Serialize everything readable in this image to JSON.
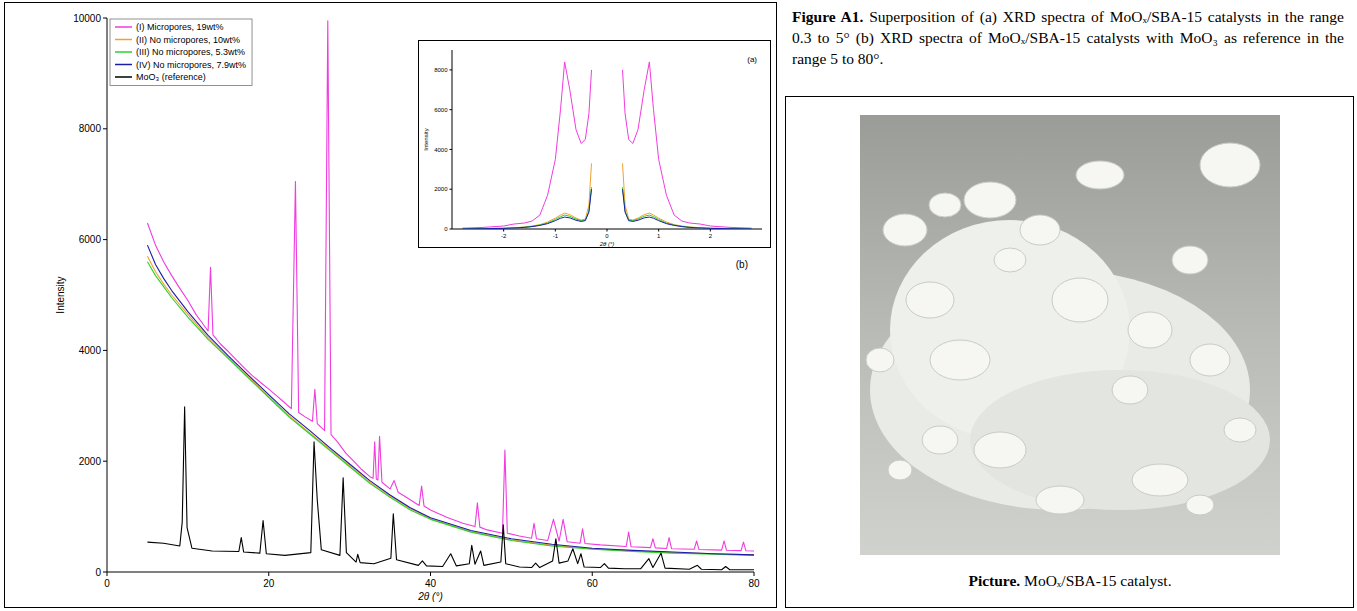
{
  "figure_caption": {
    "label": "Figure A1.",
    "text": "Superposition of (a) XRD spectra of MoOₓ/SBA-15 catalysts in the range 0.3 to 5° (b) XRD spectra of MoOₓ/SBA-15 catalysts with MoO₃ as reference in the range 5 to 80°."
  },
  "picture_caption": {
    "label": "Picture.",
    "text": "MoOₓ/SBA-15 catalyst."
  },
  "chart_data": [
    {
      "type": "line",
      "annotation": "(b)",
      "x_label": "2θ (°)",
      "y_label": "Intensity",
      "xlim": [
        0,
        80
      ],
      "xticks": [
        0,
        20,
        40,
        60,
        80
      ],
      "ylim": [
        0,
        10000
      ],
      "yticks": [
        0,
        2000,
        4000,
        6000,
        8000,
        10000
      ],
      "legend": "top-left",
      "series": [
        {
          "name": "(I) Micropores, 19wt%",
          "color": "#f03ce0",
          "x": [
            5,
            6,
            7,
            8,
            9,
            10,
            11,
            12,
            12.5,
            12.8,
            13.1,
            14,
            15,
            16,
            17,
            18,
            19,
            20,
            21,
            22,
            22.8,
            23.3,
            23.7,
            24.5,
            25.4,
            25.7,
            26,
            26.9,
            27.3,
            27.7,
            28.5,
            29.5,
            30.5,
            31.5,
            32.5,
            32.9,
            33.1,
            33.3,
            33.5,
            33.7,
            34,
            35,
            35.5,
            36,
            37,
            38.6,
            38.9,
            39.2,
            40,
            42,
            44,
            45.5,
            45.8,
            46.1,
            47,
            48.9,
            49.2,
            49.5,
            51,
            52.5,
            52.8,
            53.1,
            54.5,
            55.2,
            55.9,
            56.4,
            56.9,
            58.5,
            58.8,
            59.1,
            61,
            64.2,
            64.5,
            64.8,
            67.2,
            67.5,
            67.8,
            69.2,
            69.5,
            69.8,
            72.6,
            72.9,
            73.2,
            76,
            76.3,
            76.6,
            78.4,
            78.7,
            79,
            80
          ],
          "values": [
            6300,
            5900,
            5600,
            5350,
            5120,
            4900,
            4650,
            4450,
            4350,
            5500,
            4280,
            4120,
            3980,
            3830,
            3680,
            3540,
            3420,
            3300,
            3180,
            3050,
            2950,
            7050,
            2880,
            2800,
            2720,
            3300,
            2680,
            2550,
            9950,
            2480,
            2350,
            2150,
            2000,
            1850,
            1720,
            1690,
            2350,
            1680,
            1660,
            2450,
            1620,
            1500,
            1650,
            1440,
            1350,
            1200,
            1550,
            1190,
            1120,
            990,
            880,
            820,
            1250,
            810,
            760,
            700,
            2200,
            700,
            650,
            610,
            880,
            600,
            570,
            950,
            555,
            950,
            545,
            520,
            780,
            515,
            490,
            460,
            720,
            455,
            440,
            600,
            435,
            425,
            620,
            420,
            410,
            560,
            405,
            395,
            560,
            392,
            385,
            540,
            383,
            380
          ]
        },
        {
          "name": "(II) No micropores, 10wt%",
          "color": "#f0a22e",
          "x": [
            5,
            6,
            7,
            8,
            10,
            12.5,
            15,
            17.5,
            20,
            22.5,
            25,
            27.5,
            30,
            32.5,
            35,
            37.5,
            40,
            45,
            50,
            55,
            60,
            65,
            70,
            75,
            80
          ],
          "values": [
            5700,
            5420,
            5200,
            5000,
            4650,
            4230,
            3870,
            3520,
            3170,
            2820,
            2520,
            2220,
            1920,
            1620,
            1370,
            1140,
            960,
            730,
            580,
            480,
            420,
            380,
            350,
            330,
            310
          ]
        },
        {
          "name": "(III) No micropores, 5.3wt%",
          "color": "#2ed12e",
          "x": [
            5,
            6,
            7,
            8,
            10,
            12.5,
            15,
            17.5,
            20,
            22.5,
            25,
            27.5,
            30,
            32.5,
            35,
            37.5,
            40,
            45,
            50,
            55,
            60,
            65,
            70,
            75,
            80
          ],
          "values": [
            5600,
            5350,
            5150,
            4950,
            4600,
            4200,
            3850,
            3500,
            3150,
            2800,
            2500,
            2200,
            1900,
            1600,
            1350,
            1120,
            950,
            720,
            570,
            470,
            410,
            370,
            340,
            320,
            300
          ]
        },
        {
          "name": "(IV) No micropores, 7.9wt%",
          "color": "#1c1ca8",
          "x": [
            5,
            6,
            7,
            8,
            10,
            12.5,
            15,
            17.5,
            20,
            22.5,
            25,
            27.5,
            30,
            32.5,
            35,
            37.5,
            40,
            45,
            50,
            55,
            60,
            65,
            70,
            75,
            80
          ],
          "values": [
            5900,
            5550,
            5300,
            5080,
            4700,
            4270,
            3900,
            3550,
            3200,
            2860,
            2560,
            2250,
            1950,
            1650,
            1390,
            1160,
            980,
            750,
            600,
            500,
            430,
            390,
            360,
            330,
            310
          ]
        },
        {
          "name": "MoO₃ (reference)",
          "color": "#000000",
          "x": [
            5,
            7,
            9,
            9.3,
            9.6,
            9.9,
            10.5,
            13,
            16.3,
            16.6,
            16.9,
            18.9,
            19.3,
            19.7,
            22,
            25.2,
            25.6,
            26,
            26.5,
            28.8,
            29.2,
            29.6,
            30.8,
            31,
            31.3,
            33,
            35.1,
            35.4,
            35.8,
            38.5,
            39,
            39.5,
            41.5,
            42.5,
            43.2,
            44.8,
            45.1,
            45.5,
            46.2,
            46.6,
            48.7,
            49,
            49.3,
            51,
            52.5,
            53,
            53.5,
            55.1,
            55.5,
            55.9,
            57,
            57.6,
            58.2,
            58.6,
            59,
            61,
            61.5,
            62,
            64,
            66,
            67,
            67.5,
            68.5,
            69,
            72,
            73,
            73.5,
            76,
            76.5,
            77,
            80
          ],
          "values": [
            540,
            520,
            470,
            900,
            2980,
            800,
            430,
            380,
            370,
            620,
            360,
            340,
            930,
            330,
            300,
            350,
            2350,
            1300,
            400,
            300,
            1700,
            350,
            180,
            320,
            170,
            150,
            250,
            1050,
            220,
            120,
            200,
            110,
            100,
            330,
            110,
            150,
            480,
            140,
            380,
            120,
            180,
            850,
            150,
            90,
            80,
            160,
            80,
            200,
            600,
            160,
            200,
            420,
            150,
            330,
            90,
            80,
            150,
            70,
            60,
            60,
            240,
            80,
            340,
            70,
            50,
            120,
            50,
            40,
            100,
            40,
            40
          ]
        }
      ]
    },
    {
      "type": "line",
      "annotation": "(a)",
      "x_label": "2θ (°)",
      "y_label": "Intensity",
      "xlim": [
        -3,
        3
      ],
      "xticks": [
        -2,
        -1,
        0,
        1,
        2
      ],
      "ylim": [
        0,
        9000
      ],
      "yticks": [
        0,
        2000,
        4000,
        6000,
        8000
      ],
      "x": [
        -2.8,
        -2.4,
        -2.0,
        -1.8,
        -1.6,
        -1.45,
        -1.3,
        -1.15,
        -1.0,
        -0.9,
        -0.82,
        -0.72,
        -0.6,
        -0.5,
        -0.42,
        -0.35,
        -0.3,
        0,
        0.3,
        0.35,
        0.42,
        0.5,
        0.6,
        0.72,
        0.82,
        0.9,
        1.0,
        1.15,
        1.3,
        1.45,
        1.6,
        1.8,
        2.0,
        2.4,
        2.8
      ],
      "series": [
        {
          "name": "(I) Micropores, 19wt%",
          "color": "#f03ce0",
          "values": [
            40,
            80,
            150,
            250,
            300,
            400,
            700,
            1700,
            3500,
            6000,
            8400,
            7000,
            5000,
            4300,
            4500,
            5800,
            8000,
            null,
            8000,
            5800,
            4500,
            4300,
            5000,
            7000,
            8400,
            6000,
            3500,
            1700,
            700,
            400,
            300,
            250,
            150,
            80,
            40
          ]
        },
        {
          "name": "(II) No micropores, 10wt%",
          "color": "#f0a22e",
          "values": [
            10,
            20,
            40,
            60,
            100,
            150,
            220,
            350,
            550,
            700,
            800,
            720,
            550,
            450,
            500,
            1200,
            3300,
            null,
            3300,
            1200,
            500,
            450,
            550,
            720,
            800,
            700,
            550,
            350,
            220,
            150,
            100,
            60,
            40,
            20,
            10
          ]
        },
        {
          "name": "(III) No micropores, 5.3wt%",
          "color": "#2ed12e",
          "values": [
            10,
            20,
            35,
            55,
            90,
            130,
            200,
            300,
            480,
            620,
            700,
            640,
            500,
            420,
            450,
            900,
            2100,
            null,
            2100,
            900,
            450,
            420,
            500,
            640,
            700,
            620,
            480,
            300,
            200,
            130,
            90,
            55,
            35,
            20,
            10
          ]
        },
        {
          "name": "(IV) No micropores, 7.9wt%",
          "color": "#1c1ca8",
          "values": [
            10,
            15,
            30,
            50,
            80,
            120,
            180,
            270,
            420,
            540,
            600,
            560,
            440,
            380,
            420,
            850,
            2000,
            null,
            2000,
            850,
            420,
            380,
            440,
            560,
            600,
            540,
            420,
            270,
            180,
            120,
            80,
            50,
            30,
            15,
            10
          ]
        }
      ]
    }
  ]
}
